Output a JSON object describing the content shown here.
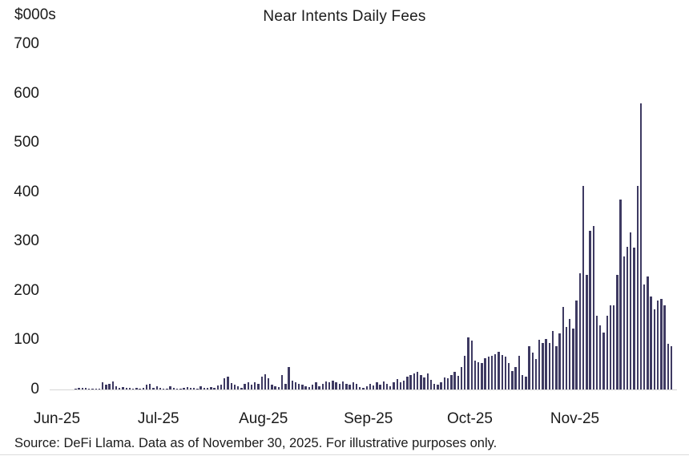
{
  "chart_data": {
    "type": "bar",
    "title": "Near Intents Daily Fees",
    "unit_label": "$000s",
    "ylim": [
      0,
      700
    ],
    "y_ticks": [
      0,
      100,
      200,
      300,
      400,
      500,
      600,
      700
    ],
    "grid": "off",
    "legend": "none",
    "bar_color": "#3e3a62",
    "axis_line_color": "#d6d6d6",
    "months": [
      {
        "label": "Jun-25",
        "daily_values": [
          0,
          0,
          0,
          0,
          0,
          0,
          1,
          2.5,
          3,
          4,
          2,
          1.5,
          1,
          2,
          14,
          9,
          11,
          16,
          6,
          4,
          5,
          3,
          3.5,
          2,
          3,
          2,
          3,
          9,
          11,
          4
        ]
      },
      {
        "label": "Jul-25",
        "daily_values": [
          6.5,
          4,
          2,
          1,
          6.5,
          4,
          2,
          1,
          4,
          5,
          4,
          3,
          2,
          6.5,
          4,
          3,
          5,
          4,
          7.5,
          10,
          22,
          26,
          12.5,
          9,
          7,
          3,
          11,
          14,
          9,
          15,
          11
        ]
      },
      {
        "label": "Aug-25",
        "daily_values": [
          26,
          31,
          23,
          10,
          7,
          5,
          29,
          11,
          45,
          18,
          14,
          11,
          9,
          7,
          5,
          10,
          14,
          7,
          12,
          16,
          14,
          18,
          14,
          11,
          16,
          12,
          9,
          14,
          11,
          5,
          3
        ]
      },
      {
        "label": "Sep-25",
        "daily_values": [
          7,
          12,
          8,
          14,
          10,
          16,
          11,
          7,
          15,
          21,
          15,
          18,
          26,
          30,
          33,
          35,
          30,
          25,
          32,
          20,
          12,
          10,
          15,
          25,
          22,
          30,
          35,
          28,
          45,
          69
        ]
      },
      {
        "label": "Oct-25",
        "daily_values": [
          105,
          99,
          59,
          56,
          54,
          64,
          67,
          69,
          72,
          76,
          70,
          67,
          53,
          37,
          45,
          69,
          29,
          26,
          87,
          75,
          61,
          101,
          94,
          103,
          94,
          118,
          88,
          113,
          167,
          126,
          143
        ]
      },
      {
        "label": "Nov-25",
        "daily_values": [
          124,
          180,
          235,
          412,
          232,
          321,
          332,
          150,
          130,
          115,
          150,
          171,
          171,
          233,
          385,
          270,
          289,
          319,
          287,
          413,
          580,
          213,
          229,
          188,
          162,
          180,
          184,
          170,
          93,
          87
        ]
      }
    ]
  },
  "footer": {
    "source_note": "Source: DeFi Llama. Data as of November 30, 2025. For illustrative purposes only."
  }
}
